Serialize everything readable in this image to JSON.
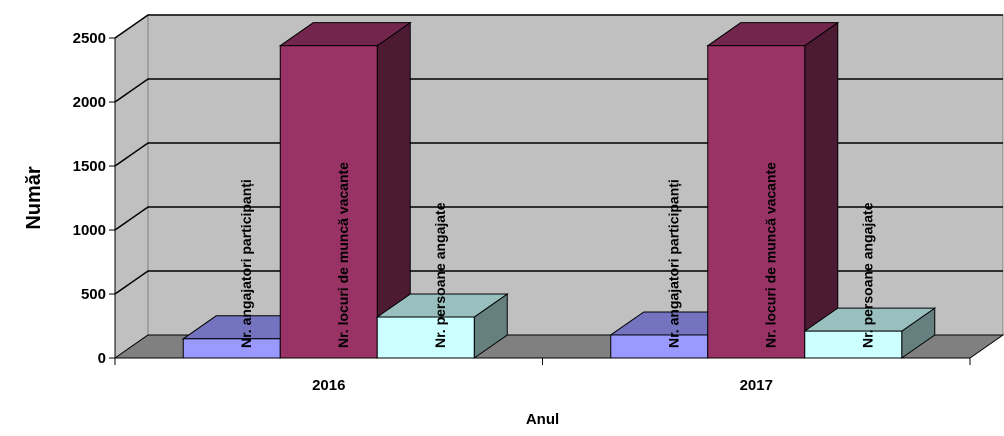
{
  "chart_data": {
    "type": "bar",
    "title": "",
    "xlabel": "Anul",
    "ylabel": "Număr",
    "categories": [
      "2016",
      "2017"
    ],
    "ylim": [
      0,
      2500
    ],
    "yticks": [
      0,
      500,
      1000,
      1500,
      2000,
      2500
    ],
    "grid": true,
    "legend": "none",
    "series": [
      {
        "name": "Nr. angajatori participanți",
        "values": [
          150,
          180
        ],
        "color": "#9999ff"
      },
      {
        "name": "Nr. locuri de muncă vacante",
        "values": [
          2440,
          2440
        ],
        "color": "#993366"
      },
      {
        "name": "Nr. persoane angajate",
        "values": [
          320,
          210
        ],
        "color": "#ccffff"
      }
    ]
  }
}
